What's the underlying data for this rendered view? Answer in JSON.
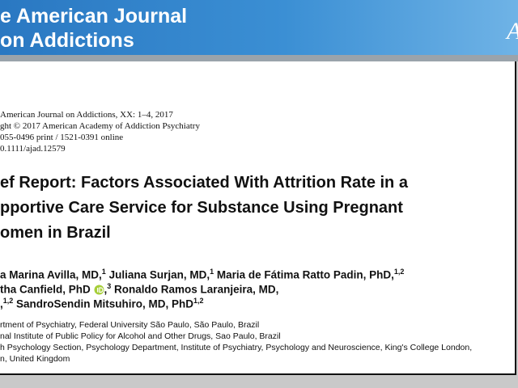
{
  "header": {
    "journal_lines": [
      "e American Journal",
      "on Addictions"
    ],
    "corner": "A"
  },
  "citation": [
    "American Journal on Addictions, XX: 1–4, 2017",
    "ght © 2017 American Academy of Addiction Psychiatry",
    "055-0496 print / 1521-0391 online",
    "0.1111/ajad.12579"
  ],
  "title": [
    "ef Report: Factors Associated With Attrition Rate in a",
    "pportive Care Service for Substance Using Pregnant",
    "omen in Brazil"
  ],
  "authors": [
    [
      {
        "t": "a Marina Avilla, MD,"
      },
      {
        "s": "1"
      },
      {
        "t": " Juliana Surjan, MD,"
      },
      {
        "s": "1"
      },
      {
        "t": " Maria de Fátima Ratto Padin, PhD,"
      },
      {
        "s": "1,2"
      }
    ],
    [
      {
        "t": "tha Canfield, PhD "
      },
      {
        "orcid": true
      },
      {
        "t": ","
      },
      {
        "s": "3"
      },
      {
        "t": " Ronaldo Ramos Laranjeira, MD,"
      }
    ],
    [
      {
        "t": ","
      },
      {
        "s": "1,2"
      },
      {
        "t": " SandroSendin Mitsuhiro, MD, PhD"
      },
      {
        "s": "1,2"
      }
    ]
  ],
  "affiliations": [
    "rtment of Psychiatry, Federal University São Paulo, São Paulo, Brazil",
    "nal Institute of Public Policy for Alcohol and Other Drugs, Sao Paulo, Brazil",
    "h Psychology Section, Psychology Department, Institute of Psychiatry, Psychology and Neuroscience, King's College London,",
    "n, United Kingdom"
  ]
}
